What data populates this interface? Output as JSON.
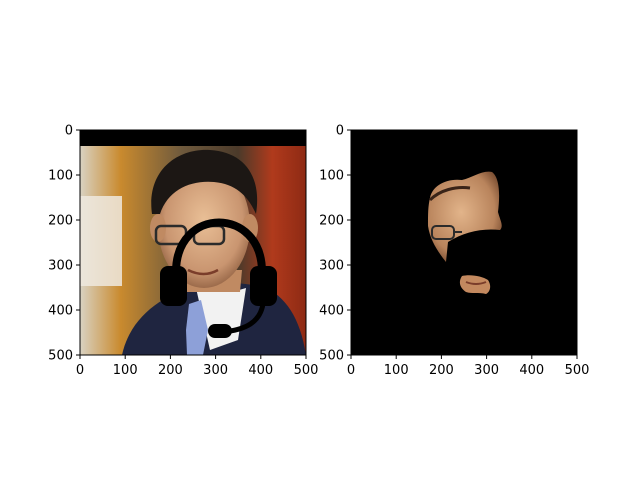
{
  "chart_data": [
    {
      "type": "image",
      "title": "",
      "xlabel": "",
      "ylabel": "",
      "xlim": [
        0,
        500
      ],
      "ylim": [
        500,
        0
      ],
      "xticks": [
        0,
        100,
        200,
        300,
        400,
        500
      ],
      "yticks": [
        0,
        100,
        200,
        300,
        400,
        500
      ],
      "xtick_labels": [
        "0",
        "100",
        "200",
        "300",
        "400",
        "500"
      ],
      "ytick_labels": [
        "0",
        "100",
        "200",
        "300",
        "400",
        "500"
      ],
      "content": "photo of a man in a suit and tie wearing glasses, with a black headset icon drawn over the face"
    },
    {
      "type": "image",
      "title": "",
      "xlabel": "",
      "ylabel": "",
      "xlim": [
        0,
        500
      ],
      "ylim": [
        500,
        0
      ],
      "xticks": [
        0,
        100,
        200,
        300,
        400,
        500
      ],
      "yticks": [
        0,
        100,
        200,
        300,
        400,
        500
      ],
      "xtick_labels": [
        "0",
        "100",
        "200",
        "300",
        "400",
        "500"
      ],
      "ytick_labels": [
        "0",
        "100",
        "200",
        "300",
        "400",
        "500"
      ],
      "content": "black image with only a segmented face region visible; headset area masked out"
    }
  ],
  "colors": {
    "background": "#ffffff",
    "mask": "#000000",
    "axis": "#000000"
  }
}
